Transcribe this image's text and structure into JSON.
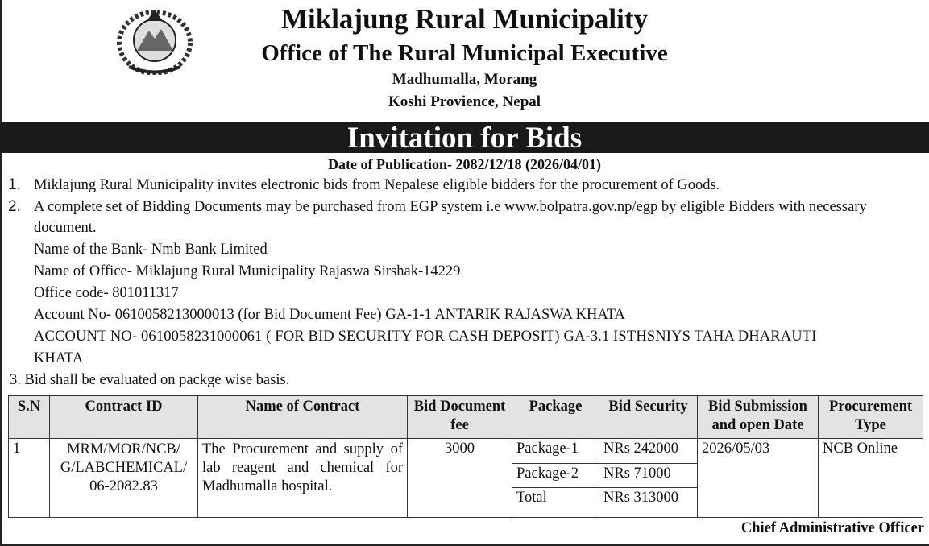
{
  "header": {
    "title": "Miklajung  Rural Municipality",
    "subtitle": "Office of The Rural Municipal Executive",
    "address1": "Madhumalla, Morang",
    "address2": "Koshi Provience, Nepal"
  },
  "banner": "Invitation for Bids",
  "publication": "Date of Publication- 2082/12/18 (2026/04/01)",
  "items": {
    "n1": "1.",
    "p1": "Miklajung Rural Municipality invites electronic bids from Nepalese eligible bidders for the procurement of Goods.",
    "n2": "2.",
    "p2a": "A complete set of Bidding Documents may be purchased from EGP system i.e www.bolpatra.gov.np/egp by eligible Bidders with necessary",
    "p2b": "document.",
    "bank": "Name of the Bank- Nmb Bank Limited",
    "office": "Name of Office- Miklajung Rural Municipality Rajaswa Sirshak-14229",
    "code": "Office code- 801011317",
    "acc1": "Account No- 0610058213000013 (for Bid Document Fee) GA-1-1 ANTARIK RAJASWA KHATA",
    "acc2a": "ACCOUNT NO- 0610058231000061 ( FOR BID SECURITY FOR CASH DEPOSIT) GA-3.1 ISTHSNIYS TAHA DHARAUTI",
    "acc2b": "KHATA",
    "p3": "3.   Bid shall be evaluated on packge wise basis."
  },
  "table": {
    "headers": [
      "S.N",
      "Contract ID",
      "Name of Contract",
      "Bid Document fee",
      "Package",
      "Bid Security",
      "Bid Submission and open Date",
      "Procurement Type"
    ],
    "row": {
      "sn": "1",
      "contract_id": "MRM/MOR/NCB/ G/LABCHEMICAL/ 06-2082.83",
      "name": "The Procurement and supply of lab  reagent and chemical for Madhumalla hospital.",
      "fee": "3000",
      "date": "2026/05/03",
      "type": "NCB Online"
    },
    "packages": [
      {
        "package": "Package-1",
        "security": "NRs 242000"
      },
      {
        "package": "Package-2",
        "security": "NRs 71000"
      },
      {
        "package": "Total",
        "security": "NRs 313000"
      }
    ]
  },
  "signature": "Chief Administrative Officer"
}
